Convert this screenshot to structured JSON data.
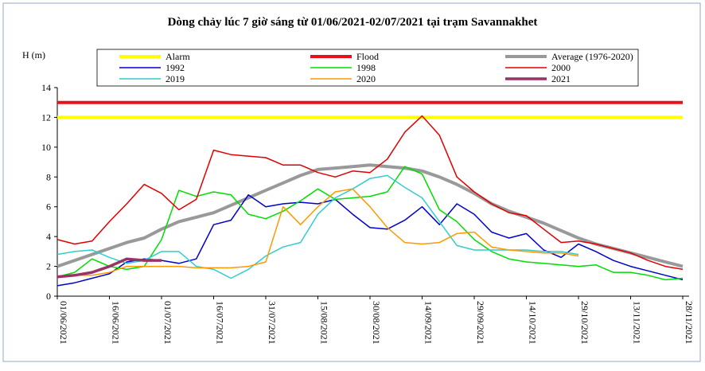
{
  "chart_data": {
    "type": "line",
    "title": "Dòng chảy lúc 7 giờ sáng từ 01/06/2021-02/07/2021 tại trạm Savannakhet",
    "y_label": "H (m)",
    "x": [
      "01/06/2021",
      "06/06/2021",
      "11/06/2021",
      "16/06/2021",
      "21/06/2021",
      "26/06/2021",
      "01/07/2021",
      "06/07/2021",
      "11/07/2021",
      "16/07/2021",
      "21/07/2021",
      "26/07/2021",
      "31/07/2021",
      "05/08/2021",
      "10/08/2021",
      "15/08/2021",
      "20/08/2021",
      "25/08/2021",
      "30/08/2021",
      "04/09/2021",
      "09/09/2021",
      "14/09/2021",
      "19/09/2021",
      "24/09/2021",
      "29/09/2021",
      "04/10/2021",
      "09/10/2021",
      "14/10/2021",
      "19/10/2021",
      "24/10/2021",
      "29/10/2021",
      "03/11/2021",
      "08/11/2021",
      "13/11/2021",
      "18/11/2021",
      "23/11/2021",
      "28/11/2021"
    ],
    "xticks": [
      "01/06/2021",
      "16/06/2021",
      "01/07/2021",
      "16/07/2021",
      "31/07/2021",
      "15/08/2021",
      "30/08/2021",
      "14/09/2021",
      "29/09/2021",
      "14/10/2021",
      "29/10/2021",
      "13/11/2021",
      "28/11/2021"
    ],
    "ylim": [
      0,
      14
    ],
    "yticks": [
      0,
      2,
      4,
      6,
      8,
      10,
      12,
      14
    ],
    "series": [
      {
        "name": "Alarm",
        "color": "#ffff00",
        "line_width": 4,
        "values": [
          12,
          12,
          12,
          12,
          12,
          12,
          12,
          12,
          12,
          12,
          12,
          12,
          12,
          12,
          12,
          12,
          12,
          12,
          12,
          12,
          12,
          12,
          12,
          12,
          12,
          12,
          12,
          12,
          12,
          12,
          12,
          12,
          12,
          12,
          12,
          12,
          12
        ]
      },
      {
        "name": "Flood",
        "color": "#e8101a",
        "line_width": 4,
        "values": [
          13,
          13,
          13,
          13,
          13,
          13,
          13,
          13,
          13,
          13,
          13,
          13,
          13,
          13,
          13,
          13,
          13,
          13,
          13,
          13,
          13,
          13,
          13,
          13,
          13,
          13,
          13,
          13,
          13,
          13,
          13,
          13,
          13,
          13,
          13,
          13,
          13
        ]
      },
      {
        "name": "Average (1976-2020)",
        "color": "#999999",
        "line_width": 4,
        "values": [
          2.0,
          2.4,
          2.8,
          3.2,
          3.6,
          3.9,
          4.5,
          5.0,
          5.3,
          5.6,
          6.1,
          6.6,
          7.1,
          7.6,
          8.1,
          8.5,
          8.6,
          8.7,
          8.8,
          8.7,
          8.6,
          8.4,
          8.0,
          7.5,
          6.9,
          6.2,
          5.7,
          5.3,
          4.9,
          4.4,
          3.9,
          3.5,
          3.2,
          2.9,
          2.6,
          2.3,
          2.0
        ]
      },
      {
        "name": "1992",
        "color": "#0000cc",
        "line_width": 1.5,
        "values": [
          0.7,
          0.9,
          1.2,
          1.5,
          2.3,
          2.5,
          2.4,
          2.2,
          2.5,
          4.8,
          5.1,
          6.8,
          6.0,
          6.2,
          6.3,
          6.2,
          6.5,
          5.5,
          4.6,
          4.5,
          5.1,
          6.0,
          4.8,
          6.2,
          5.5,
          4.3,
          3.9,
          4.2,
          3.1,
          2.6,
          3.5,
          3.0,
          2.4,
          2.0,
          1.7,
          1.4,
          1.1
        ]
      },
      {
        "name": "1998",
        "color": "#00dd00",
        "line_width": 1.5,
        "values": [
          1.3,
          1.6,
          2.5,
          2.0,
          1.8,
          2.0,
          3.8,
          7.1,
          6.7,
          7.0,
          6.8,
          5.5,
          5.2,
          5.7,
          6.4,
          7.2,
          6.5,
          6.6,
          6.7,
          7.0,
          8.7,
          8.2,
          5.8,
          5.0,
          3.8,
          3.0,
          2.5,
          2.3,
          2.2,
          2.1,
          2.0,
          2.1,
          1.6,
          1.6,
          1.4,
          1.1,
          1.2
        ]
      },
      {
        "name": "2000",
        "color": "#e00000",
        "line_width": 1.5,
        "values": [
          3.8,
          3.5,
          3.7,
          5.0,
          6.2,
          7.5,
          6.9,
          5.8,
          6.5,
          9.8,
          9.5,
          9.4,
          9.3,
          8.8,
          8.8,
          8.3,
          8.0,
          8.4,
          8.3,
          9.2,
          11.0,
          12.1,
          10.8,
          8.0,
          7.0,
          6.2,
          5.6,
          5.4,
          4.5,
          3.6,
          3.7,
          3.5,
          3.2,
          2.9,
          2.4,
          2.0,
          1.8
        ]
      },
      {
        "name": "2019",
        "color": "#33cccc",
        "line_width": 1.5,
        "values": [
          2.8,
          3.0,
          3.1,
          2.6,
          2.2,
          2.4,
          3.0,
          3.0,
          2.0,
          1.8,
          1.2,
          1.8,
          2.7,
          3.3,
          3.6,
          5.5,
          6.6,
          7.2,
          7.9,
          8.1,
          7.3,
          6.6,
          5.0,
          3.4,
          3.1,
          3.1,
          3.1,
          3.1,
          3.0,
          3.0,
          2.8,
          null,
          null,
          null,
          null,
          null,
          null
        ]
      },
      {
        "name": "2020",
        "color": "#ff9900",
        "line_width": 1.5,
        "values": [
          1.3,
          1.4,
          1.4,
          1.6,
          2.0,
          2.0,
          2.0,
          2.0,
          1.9,
          1.9,
          1.9,
          2.0,
          2.3,
          6.0,
          4.8,
          6.0,
          7.0,
          7.2,
          6.0,
          4.6,
          3.6,
          3.5,
          3.6,
          4.2,
          4.3,
          3.3,
          3.1,
          3.0,
          2.9,
          2.9,
          2.7,
          null,
          null,
          null,
          null,
          null,
          null
        ]
      },
      {
        "name": "2021",
        "color": "#993366",
        "line_width": 3.5,
        "values": [
          1.3,
          1.4,
          1.6,
          2.0,
          2.5,
          2.4,
          2.4,
          null,
          null,
          null,
          null,
          null,
          null,
          null,
          null,
          null,
          null,
          null,
          null,
          null,
          null,
          null,
          null,
          null,
          null,
          null,
          null,
          null,
          null,
          null,
          null,
          null,
          null,
          null,
          null,
          null,
          null
        ]
      }
    ]
  }
}
